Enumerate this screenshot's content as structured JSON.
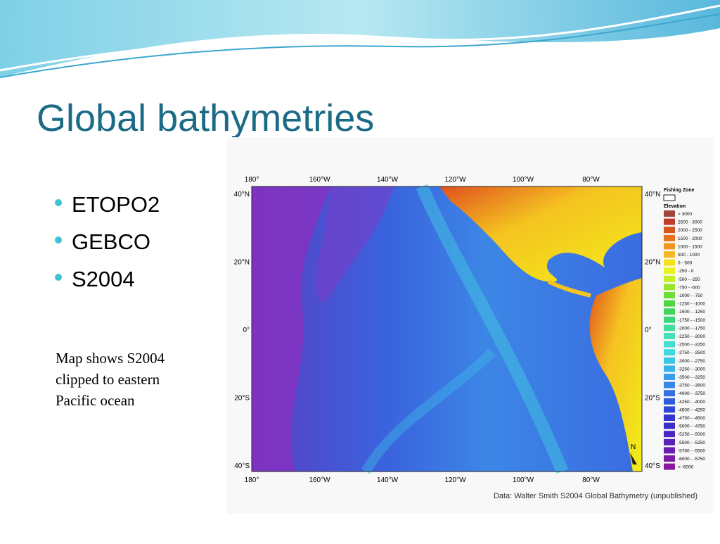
{
  "header": {
    "title": "Global bathymetries"
  },
  "bullets": [
    "ETOPO2",
    "GEBCO",
    "S2004"
  ],
  "note": [
    "Map shows S2004",
    "clipped to eastern",
    "Pacific ocean"
  ],
  "map": {
    "lon_labels": [
      "180°",
      "160°W",
      "140°W",
      "120°W",
      "100°W",
      "80°W"
    ],
    "lat_labels": [
      "40°N",
      "20°N",
      "0°",
      "20°S",
      "40°S"
    ],
    "north": "N",
    "legend": {
      "zone": "Fishing Zone",
      "title": "Elevation",
      "items": [
        {
          "label": "> 3000",
          "color": "#a0443c"
        },
        {
          "label": "2500 - 3000",
          "color": "#c0392b"
        },
        {
          "label": "2000 - 2500",
          "color": "#d9531e"
        },
        {
          "label": "1500 - 2000",
          "color": "#e8731c"
        },
        {
          "label": "1000 - 1500",
          "color": "#f0961e"
        },
        {
          "label": "500 - 1000",
          "color": "#f5b820"
        },
        {
          "label": "0 - 500",
          "color": "#f7e21a"
        },
        {
          "label": "-250 - 0",
          "color": "#e9f51a"
        },
        {
          "label": "-500 - -250",
          "color": "#c4ef22"
        },
        {
          "label": "-750 - -500",
          "color": "#9be62b"
        },
        {
          "label": "-1000 - -750",
          "color": "#6fdd35"
        },
        {
          "label": "-1250 - -1000",
          "color": "#4ed640"
        },
        {
          "label": "-1500 - -1250",
          "color": "#3fd65a"
        },
        {
          "label": "-1750 - -1500",
          "color": "#3ed87c"
        },
        {
          "label": "-2000 - -1750",
          "color": "#42dc9c"
        },
        {
          "label": "-2250 - -2000",
          "color": "#45dfb8"
        },
        {
          "label": "-2500 - -2250",
          "color": "#44dfcf"
        },
        {
          "label": "-2750 - -2500",
          "color": "#3fd8df"
        },
        {
          "label": "-3000 - -2750",
          "color": "#3bc8e6"
        },
        {
          "label": "-3250 - -3000",
          "color": "#38b4ea"
        },
        {
          "label": "-3500 - -3250",
          "color": "#389eea"
        },
        {
          "label": "-3750 - -3500",
          "color": "#3787e8"
        },
        {
          "label": "-4000 - -3750",
          "color": "#3470e4"
        },
        {
          "label": "-4250 - -4000",
          "color": "#315bdf"
        },
        {
          "label": "-4500 - -4250",
          "color": "#2e47d8"
        },
        {
          "label": "-4750 - -4500",
          "color": "#3236cf"
        },
        {
          "label": "-5000 - -4750",
          "color": "#3a2dc8"
        },
        {
          "label": "-5250 - -5000",
          "color": "#4a27c0"
        },
        {
          "label": "-5500 - -5250",
          "color": "#5a22b8"
        },
        {
          "label": "-5760 - -5500",
          "color": "#6a1fb0"
        },
        {
          "label": "-6000 - -5750",
          "color": "#7a1ca8"
        },
        {
          "label": "< -6000",
          "color": "#8a18a0"
        }
      ]
    },
    "credit": "Data: Walter Smith S2004 Global Bathymetry (unpublished)"
  }
}
